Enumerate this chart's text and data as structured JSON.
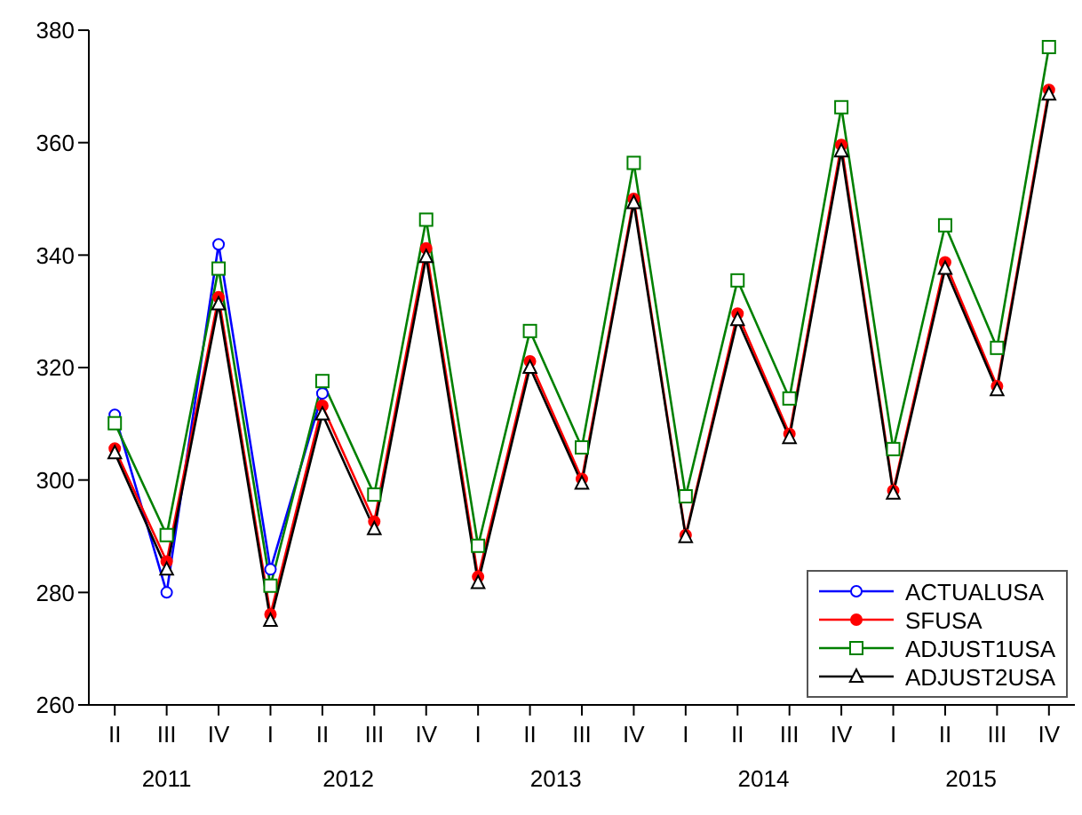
{
  "chart_data": {
    "type": "line",
    "categories": [
      "II",
      "III",
      "IV",
      "I",
      "II",
      "III",
      "IV",
      "I",
      "II",
      "III",
      "IV",
      "I",
      "II",
      "III",
      "IV",
      "I",
      "II",
      "III",
      "IV"
    ],
    "annotations": [
      "2011",
      "2012",
      "2013",
      "2014",
      "2015"
    ],
    "ylim": [
      260,
      380
    ],
    "yticks": [
      260,
      280,
      300,
      320,
      340,
      360,
      380
    ],
    "grid": false,
    "legend": "bottom right",
    "series": [
      {
        "name": "ACTUALUSA",
        "color": "#0000ff",
        "marker": "circle",
        "values": [
          311.6,
          280.0,
          341.9,
          284.1,
          315.4,
          null,
          null,
          null,
          null,
          null,
          null,
          null,
          null,
          null,
          null,
          null,
          null,
          null,
          null
        ]
      },
      {
        "name": "SFUSA",
        "color": "#ff0000",
        "marker": "dot",
        "values": [
          305.6,
          285.5,
          332.5,
          276.1,
          313.2,
          292.6,
          341.2,
          282.8,
          321.1,
          300.2,
          350.0,
          290.2,
          329.6,
          308.2,
          359.6,
          298.1,
          338.7,
          316.7,
          369.4
        ]
      },
      {
        "name": "ADJUST1USA",
        "color": "#008000",
        "marker": "square",
        "values": [
          310.1,
          290.2,
          337.6,
          281.2,
          317.6,
          297.4,
          346.3,
          288.3,
          326.5,
          305.8,
          356.4,
          297.1,
          335.5,
          314.5,
          366.3,
          305.5,
          345.3,
          323.5,
          377.0
        ]
      },
      {
        "name": "ADJUST2USA",
        "color": "#000000",
        "marker": "triangle",
        "values": [
          304.8,
          284.1,
          331.3,
          275.0,
          311.7,
          291.3,
          339.7,
          281.7,
          320.0,
          299.4,
          349.3,
          289.9,
          328.5,
          307.5,
          358.5,
          297.6,
          337.6,
          316.0,
          368.6
        ]
      }
    ]
  }
}
